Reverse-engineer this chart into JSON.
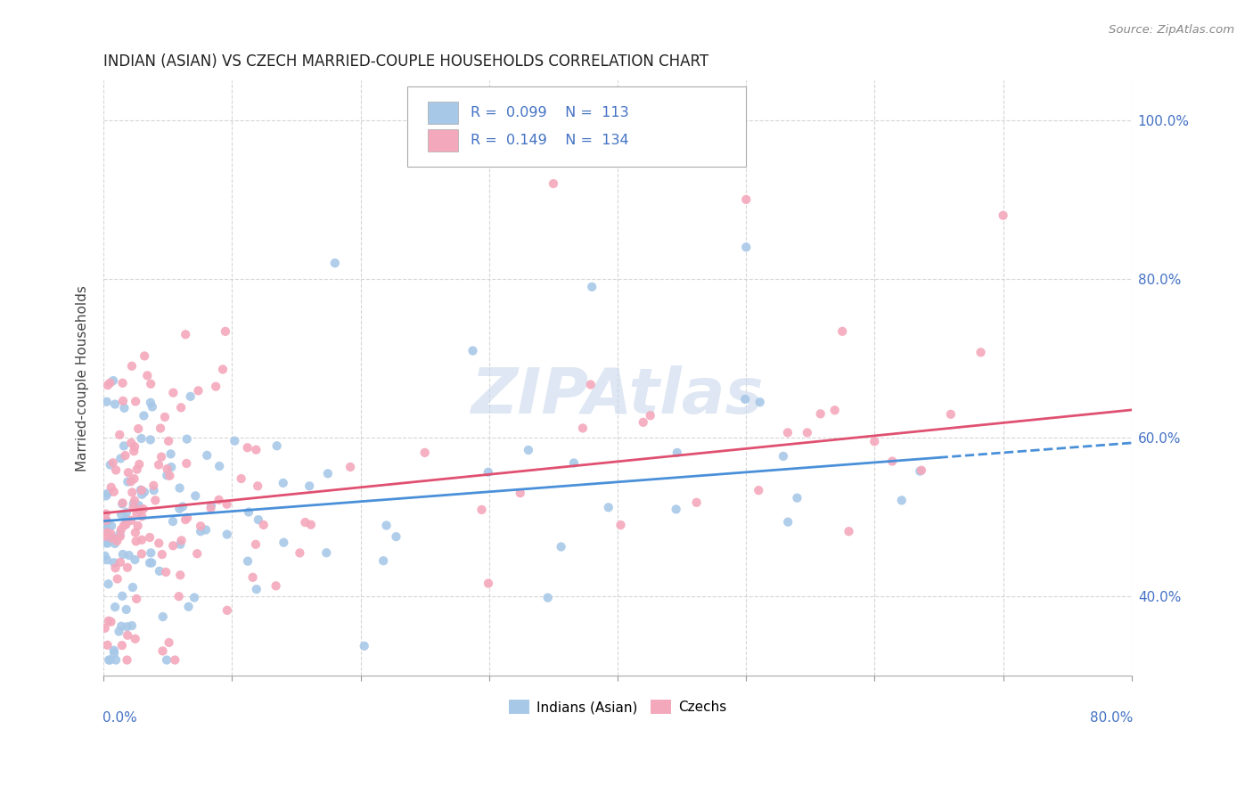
{
  "title": "INDIAN (ASIAN) VS CZECH MARRIED-COUPLE HOUSEHOLDS CORRELATION CHART",
  "source": "Source: ZipAtlas.com",
  "ylabel": "Married-couple Households",
  "xmin": 0.0,
  "xmax": 0.8,
  "ymin": 0.3,
  "ymax": 1.05,
  "blue_R": 0.099,
  "blue_N": 113,
  "pink_R": 0.149,
  "pink_N": 134,
  "blue_scatter_color": "#a8c8e8",
  "pink_scatter_color": "#f4a8bc",
  "trend_blue": "#4a90d9",
  "trend_pink": "#e05070",
  "watermark": "ZIPAtlas",
  "watermark_color": "#c8d8ec",
  "legend_color": "#4472c4",
  "background_color": "#ffffff",
  "grid_color": "#cccccc",
  "ytick_values": [
    0.4,
    0.6,
    0.8,
    1.0
  ],
  "ytick_labels": [
    "40.0%",
    "60.0%",
    "80.0%",
    "100.0%"
  ],
  "blue_trend_start_y": 0.495,
  "blue_trend_end_y": 0.575,
  "blue_trend_end_x": 0.65,
  "pink_trend_start_y": 0.505,
  "pink_trend_end_y": 0.635
}
